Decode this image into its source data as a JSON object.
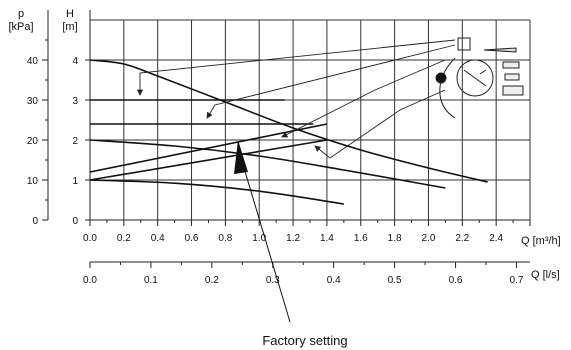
{
  "chart_data": {
    "type": "line",
    "p_axis": {
      "label_line1": "p",
      "label_line2": "[kPa]",
      "ticks": [
        0,
        10,
        20,
        30,
        40
      ],
      "range": [
        0,
        50
      ]
    },
    "h_axis": {
      "label_line1": "H",
      "label_line2": "[m]",
      "ticks": [
        0,
        1,
        2,
        3,
        4
      ],
      "range": [
        0,
        5
      ]
    },
    "q_m3h_axis": {
      "label": "Q [m³/h]",
      "ticks": [
        "0.0",
        "0.2",
        "0.4",
        "0.6",
        "0.8",
        "1.0",
        "1.2",
        "1.4",
        "1.6",
        "1.8",
        "2.0",
        "2.2",
        "2.4"
      ],
      "range": [
        0,
        2.6
      ]
    },
    "q_ls_axis": {
      "label": "Q [l/s]",
      "ticks": [
        "0.0",
        "0.1",
        "0.2",
        "0.3",
        "0.4",
        "0.5",
        "0.6",
        "0.7"
      ],
      "range": [
        0,
        0.7222
      ]
    },
    "grid": true,
    "series": [
      {
        "style": "proportional-pressure",
        "x": [
          0,
          1.4
        ],
        "y": [
          1.2,
          2.4
        ]
      },
      {
        "style": "proportional-pressure",
        "x": [
          0,
          1.4
        ],
        "y": [
          1.0,
          2.0
        ]
      },
      {
        "style": "constant-pressure",
        "x": [
          0,
          1.15
        ],
        "y": [
          3.0,
          3.0
        ]
      },
      {
        "style": "constant-pressure",
        "x": [
          0,
          1.32
        ],
        "y": [
          2.4,
          2.4
        ]
      },
      {
        "style": "constant-curve",
        "x": [
          0,
          0.2,
          0.4,
          0.8,
          1.2,
          1.6,
          2.0,
          2.35
        ],
        "y": [
          4.0,
          3.9,
          3.6,
          2.95,
          2.3,
          1.75,
          1.3,
          0.95
        ]
      },
      {
        "style": "constant-curve",
        "x": [
          0,
          0.5,
          1.0,
          1.5,
          2.1
        ],
        "y": [
          2.0,
          1.85,
          1.6,
          1.25,
          0.8
        ]
      },
      {
        "style": "constant-curve",
        "x": [
          0,
          0.5,
          1.0,
          1.5
        ],
        "y": [
          1.0,
          0.92,
          0.72,
          0.4
        ]
      }
    ],
    "annotation": {
      "text": "Factory setting"
    }
  }
}
